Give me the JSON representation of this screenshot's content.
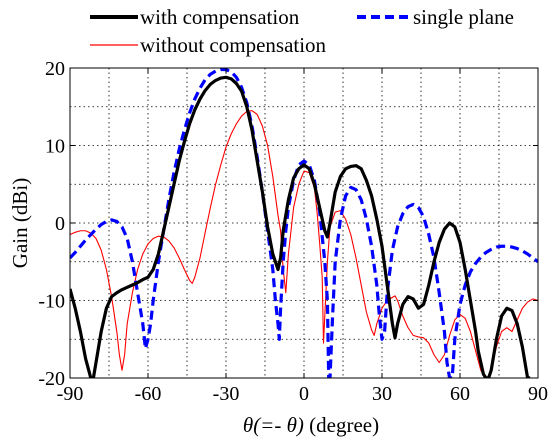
{
  "chart_data": {
    "type": "line",
    "xlabel_prefix": "θ(=- θ)",
    "xlabel_suffix": " (degree)",
    "ylabel": "Gain (dBi)",
    "xlim": [
      -90,
      90
    ],
    "ylim": [
      -20,
      20
    ],
    "x_ticks": [
      -90,
      -60,
      -30,
      0,
      30,
      60,
      90
    ],
    "x_tick_labels": [
      "-90",
      "-60",
      "-30",
      "0",
      "30",
      "60",
      "90"
    ],
    "y_ticks": [
      -20,
      -10,
      0,
      10,
      20
    ],
    "y_tick_labels": [
      "-20",
      "-10",
      "0",
      "10",
      "20"
    ],
    "grid": true,
    "legend_position": "top",
    "series": [
      {
        "name": "with compensation",
        "color": "#000000",
        "style": "solid-thick",
        "points": [
          [
            -90,
            -8.5
          ],
          [
            -88,
            -11
          ],
          [
            -86,
            -14
          ],
          [
            -84,
            -17.5
          ],
          [
            -82,
            -20
          ],
          [
            -81,
            -20
          ],
          [
            -80,
            -18
          ],
          [
            -78,
            -14
          ],
          [
            -76,
            -11
          ],
          [
            -74,
            -9.5
          ],
          [
            -72,
            -9
          ],
          [
            -70,
            -8.6
          ],
          [
            -68,
            -8.3
          ],
          [
            -66,
            -8
          ],
          [
            -64,
            -7.7
          ],
          [
            -62,
            -7.3
          ],
          [
            -60,
            -7
          ],
          [
            -58,
            -6
          ],
          [
            -56,
            -4
          ],
          [
            -54,
            -1
          ],
          [
            -52,
            2
          ],
          [
            -50,
            5
          ],
          [
            -48,
            8
          ],
          [
            -46,
            10.5
          ],
          [
            -44,
            12.8
          ],
          [
            -42,
            14.6
          ],
          [
            -40,
            16
          ],
          [
            -38,
            17.1
          ],
          [
            -36,
            17.9
          ],
          [
            -34,
            18.4
          ],
          [
            -32,
            18.7
          ],
          [
            -30,
            18.8
          ],
          [
            -28,
            18.6
          ],
          [
            -26,
            18
          ],
          [
            -24,
            17
          ],
          [
            -22,
            15
          ],
          [
            -20,
            12
          ],
          [
            -18,
            8
          ],
          [
            -16,
            4
          ],
          [
            -14,
            -0.5
          ],
          [
            -12,
            -4
          ],
          [
            -10,
            -6
          ],
          [
            -9,
            -4.5
          ],
          [
            -8,
            -1
          ],
          [
            -6,
            3
          ],
          [
            -4,
            5.8
          ],
          [
            -2,
            7
          ],
          [
            0,
            7.5
          ],
          [
            2,
            7
          ],
          [
            4,
            5
          ],
          [
            6,
            2
          ],
          [
            8,
            -1
          ],
          [
            9,
            -1.8
          ],
          [
            10,
            0
          ],
          [
            12,
            4
          ],
          [
            14,
            6
          ],
          [
            16,
            7
          ],
          [
            18,
            7.3
          ],
          [
            20,
            7.4
          ],
          [
            22,
            7
          ],
          [
            24,
            5.5
          ],
          [
            26,
            3.5
          ],
          [
            28,
            0.5
          ],
          [
            30,
            -3
          ],
          [
            32,
            -8
          ],
          [
            34,
            -13
          ],
          [
            35,
            -14.8
          ],
          [
            36,
            -13
          ],
          [
            38,
            -10.5
          ],
          [
            40,
            -9.5
          ],
          [
            42,
            -9.8
          ],
          [
            44,
            -11
          ],
          [
            46,
            -10.5
          ],
          [
            48,
            -8
          ],
          [
            50,
            -5
          ],
          [
            52,
            -2.5
          ],
          [
            54,
            -0.8
          ],
          [
            56,
            0
          ],
          [
            58,
            -0.5
          ],
          [
            60,
            -2.5
          ],
          [
            62,
            -6
          ],
          [
            64,
            -10
          ],
          [
            66,
            -14
          ],
          [
            67,
            -16.5
          ],
          [
            68,
            -18
          ],
          [
            69,
            -19.5
          ],
          [
            70,
            -20
          ],
          [
            71,
            -20
          ],
          [
            72,
            -19
          ],
          [
            74,
            -15
          ],
          [
            76,
            -12
          ],
          [
            78,
            -11
          ],
          [
            80,
            -11.3
          ],
          [
            82,
            -13
          ],
          [
            84,
            -16
          ],
          [
            86,
            -20
          ],
          [
            87,
            -20
          ]
        ]
      },
      {
        "name": "single plane",
        "color": "#0000ff",
        "style": "dashed-thick",
        "points": [
          [
            -90,
            -4.5
          ],
          [
            -88,
            -3.8
          ],
          [
            -86,
            -3
          ],
          [
            -84,
            -2.2
          ],
          [
            -82,
            -1.5
          ],
          [
            -80,
            -0.8
          ],
          [
            -78,
            -0.2
          ],
          [
            -76,
            0.2
          ],
          [
            -74,
            0.4
          ],
          [
            -72,
            0.2
          ],
          [
            -70,
            -0.5
          ],
          [
            -68,
            -2
          ],
          [
            -66,
            -5
          ],
          [
            -64,
            -9
          ],
          [
            -62,
            -13
          ],
          [
            -61,
            -16.2
          ],
          [
            -60,
            -15
          ],
          [
            -59,
            -13
          ],
          [
            -58,
            -10
          ],
          [
            -56,
            -5
          ],
          [
            -54,
            -1
          ],
          [
            -52,
            3
          ],
          [
            -50,
            6.5
          ],
          [
            -48,
            9.5
          ],
          [
            -46,
            12
          ],
          [
            -44,
            14.2
          ],
          [
            -42,
            16
          ],
          [
            -40,
            17.4
          ],
          [
            -38,
            18.5
          ],
          [
            -36,
            19.2
          ],
          [
            -34,
            19.6
          ],
          [
            -32,
            19.8
          ],
          [
            -30,
            19.8
          ],
          [
            -28,
            19.5
          ],
          [
            -26,
            18.8
          ],
          [
            -24,
            17.5
          ],
          [
            -22,
            15.5
          ],
          [
            -20,
            12.5
          ],
          [
            -18,
            8.5
          ],
          [
            -16,
            4
          ],
          [
            -14,
            -1
          ],
          [
            -12,
            -6
          ],
          [
            -11,
            -10
          ],
          [
            -10,
            -13
          ],
          [
            -9.5,
            -15
          ],
          [
            -9,
            -11
          ],
          [
            -8,
            -5
          ],
          [
            -7,
            -1
          ],
          [
            -6,
            2
          ],
          [
            -4,
            5.5
          ],
          [
            -2,
            7.5
          ],
          [
            0,
            8
          ],
          [
            2,
            7.5
          ],
          [
            4,
            5.5
          ],
          [
            6,
            1.5
          ],
          [
            8,
            -5
          ],
          [
            9,
            -10
          ],
          [
            9.5,
            -20
          ],
          [
            10,
            -20
          ],
          [
            11,
            -12
          ],
          [
            12,
            -5
          ],
          [
            14,
            0.5
          ],
          [
            16,
            3.5
          ],
          [
            18,
            4.6
          ],
          [
            20,
            4.3
          ],
          [
            22,
            3
          ],
          [
            24,
            0.5
          ],
          [
            26,
            -3
          ],
          [
            28,
            -8
          ],
          [
            29,
            -12
          ],
          [
            30,
            -15
          ],
          [
            31,
            -14
          ],
          [
            32,
            -9
          ],
          [
            34,
            -3.5
          ],
          [
            36,
            -0.5
          ],
          [
            38,
            1.2
          ],
          [
            40,
            2.1
          ],
          [
            42,
            2.4
          ],
          [
            44,
            2
          ],
          [
            46,
            0.8
          ],
          [
            48,
            -1.5
          ],
          [
            50,
            -4.5
          ],
          [
            52,
            -9
          ],
          [
            54,
            -14
          ],
          [
            55,
            -18
          ],
          [
            56,
            -20
          ],
          [
            57,
            -20
          ],
          [
            58,
            -15
          ],
          [
            60,
            -10.5
          ],
          [
            62,
            -8
          ],
          [
            64,
            -6.3
          ],
          [
            66,
            -5.2
          ],
          [
            68,
            -4.4
          ],
          [
            70,
            -3.8
          ],
          [
            72,
            -3.4
          ],
          [
            74,
            -3.1
          ],
          [
            76,
            -3
          ],
          [
            78,
            -3
          ],
          [
            80,
            -3.1
          ],
          [
            82,
            -3.3
          ],
          [
            84,
            -3.6
          ],
          [
            86,
            -4
          ],
          [
            88,
            -4.5
          ],
          [
            90,
            -5
          ]
        ]
      },
      {
        "name": "without compensation",
        "color": "#ff0000",
        "style": "solid-thin",
        "points": [
          [
            -90,
            -1.5
          ],
          [
            -88,
            -1.2
          ],
          [
            -86,
            -1
          ],
          [
            -84,
            -1
          ],
          [
            -82,
            -1.3
          ],
          [
            -80,
            -2
          ],
          [
            -78,
            -3.5
          ],
          [
            -76,
            -6
          ],
          [
            -74,
            -9.5
          ],
          [
            -72,
            -14
          ],
          [
            -71,
            -17
          ],
          [
            -70,
            -19
          ],
          [
            -69,
            -17
          ],
          [
            -68,
            -13
          ],
          [
            -66,
            -9
          ],
          [
            -64,
            -6
          ],
          [
            -62,
            -4
          ],
          [
            -60,
            -2.7
          ],
          [
            -58,
            -2
          ],
          [
            -56,
            -1.7
          ],
          [
            -54,
            -1.8
          ],
          [
            -52,
            -2.3
          ],
          [
            -50,
            -3.2
          ],
          [
            -48,
            -4.5
          ],
          [
            -46,
            -6
          ],
          [
            -44,
            -7.4
          ],
          [
            -43,
            -7.8
          ],
          [
            -42,
            -7
          ],
          [
            -40,
            -4.5
          ],
          [
            -38,
            -1.2
          ],
          [
            -36,
            2
          ],
          [
            -34,
            5
          ],
          [
            -32,
            7.5
          ],
          [
            -30,
            9.8
          ],
          [
            -28,
            11.5
          ],
          [
            -26,
            12.8
          ],
          [
            -24,
            13.8
          ],
          [
            -22,
            14.4
          ],
          [
            -20,
            14.5
          ],
          [
            -18,
            14
          ],
          [
            -16,
            12.5
          ],
          [
            -14,
            10
          ],
          [
            -12,
            6
          ],
          [
            -10,
            1
          ],
          [
            -9,
            -1
          ],
          [
            -8,
            -6
          ],
          [
            -7,
            -9
          ],
          [
            -6,
            -4
          ],
          [
            -5,
            -1
          ],
          [
            -4,
            2
          ],
          [
            -2,
            5
          ],
          [
            0,
            6.7
          ],
          [
            2,
            6.5
          ],
          [
            4,
            4.5
          ],
          [
            5,
            1.5
          ],
          [
            6,
            -2.5
          ],
          [
            7,
            -7
          ],
          [
            7.5,
            -15.5
          ],
          [
            8,
            -12
          ],
          [
            9,
            -5
          ],
          [
            10,
            -0.5
          ],
          [
            12,
            1.4
          ],
          [
            14,
            1.6
          ],
          [
            16,
            0.5
          ],
          [
            18,
            -1.5
          ],
          [
            20,
            -4.5
          ],
          [
            22,
            -8
          ],
          [
            24,
            -11.5
          ],
          [
            26,
            -13.8
          ],
          [
            27,
            -14.5
          ],
          [
            28,
            -13
          ],
          [
            30,
            -11
          ],
          [
            32,
            -10
          ],
          [
            34,
            -9.6
          ],
          [
            35,
            -9.4
          ],
          [
            36,
            -10
          ],
          [
            38,
            -12
          ],
          [
            40,
            -13.5
          ],
          [
            42,
            -14.5
          ],
          [
            44,
            -14.7
          ],
          [
            46,
            -14.8
          ],
          [
            48,
            -15.5
          ],
          [
            50,
            -17
          ],
          [
            52,
            -18
          ],
          [
            54,
            -17
          ],
          [
            56,
            -14.5
          ],
          [
            58,
            -12.5
          ],
          [
            60,
            -11.8
          ],
          [
            62,
            -12.3
          ],
          [
            64,
            -14
          ],
          [
            66,
            -16.5
          ],
          [
            68,
            -19
          ],
          [
            70,
            -20.3
          ],
          [
            72,
            -19
          ],
          [
            74,
            -16
          ],
          [
            76,
            -14
          ],
          [
            78,
            -13.5
          ],
          [
            80,
            -14
          ],
          [
            82,
            -12.5
          ],
          [
            84,
            -11
          ],
          [
            86,
            -10.2
          ],
          [
            88,
            -9.8
          ],
          [
            90,
            -10
          ]
        ]
      }
    ]
  }
}
